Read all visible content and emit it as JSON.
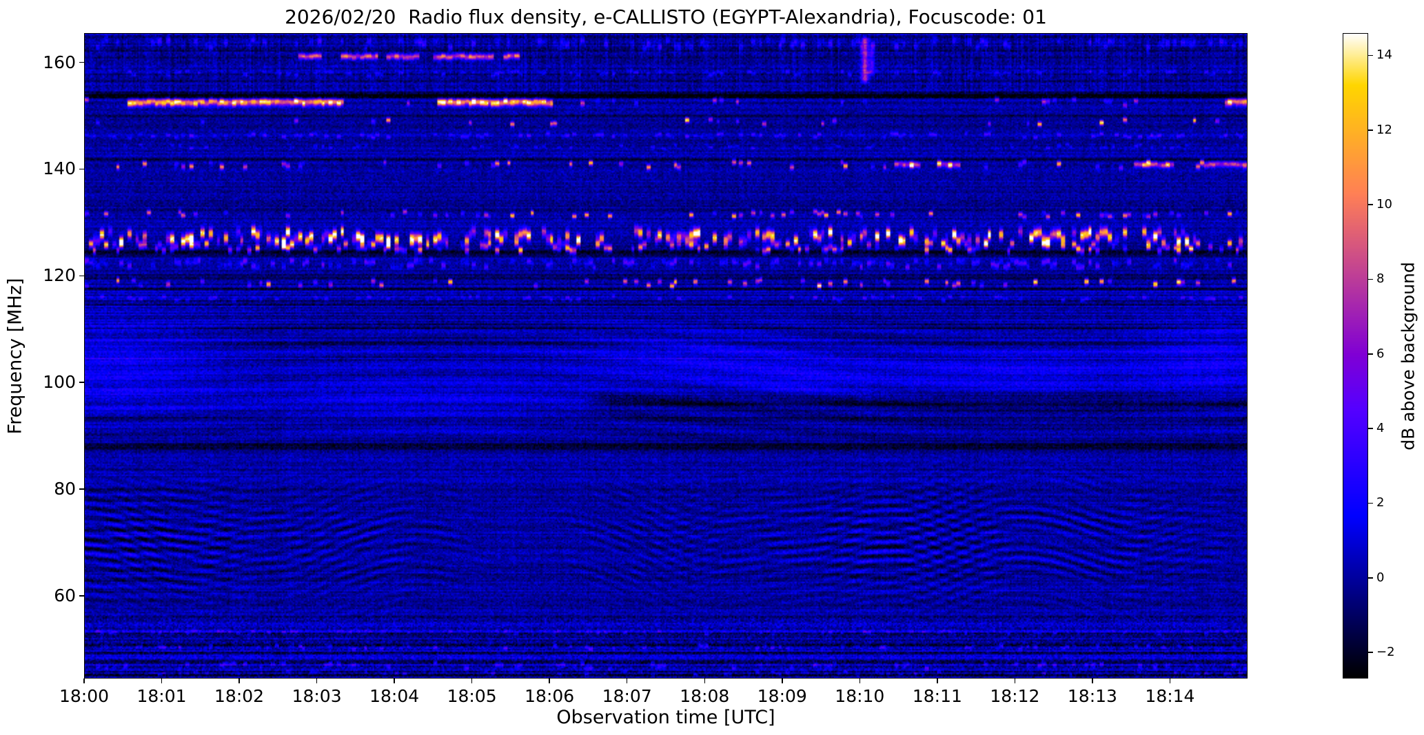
{
  "chart_data": {
    "type": "heatmap",
    "title": "2026/02/20  Radio flux density, e-CALLISTO (EGYPT-Alexandria), Focuscode: 01",
    "xlabel": "Observation time [UTC]",
    "ylabel": "Frequency [MHz]",
    "x_tick_labels": [
      "18:00",
      "18:01",
      "18:02",
      "18:03",
      "18:04",
      "18:05",
      "18:06",
      "18:07",
      "18:08",
      "18:09",
      "18:10",
      "18:11",
      "18:12",
      "18:13",
      "18:14"
    ],
    "x_tick_minutes": [
      0,
      1,
      2,
      3,
      4,
      5,
      6,
      7,
      8,
      9,
      10,
      11,
      12,
      13,
      14
    ],
    "x_range_minutes": [
      0,
      15
    ],
    "y_tick_values": [
      160,
      140,
      120,
      100,
      80,
      60
    ],
    "y_tick_labels": [
      "160",
      "140",
      "120",
      "100",
      "80",
      "60"
    ],
    "ylim": [
      44.5,
      165.5
    ],
    "colormap": "gnuplot2",
    "background_color": "#ffffff",
    "axis_color": "#000000",
    "colorbar": {
      "label": "dB above background",
      "tick_values": [
        14,
        12,
        10,
        8,
        6,
        4,
        2,
        0,
        -2
      ],
      "tick_labels": [
        "14",
        "12",
        "10",
        "8",
        "6",
        "4",
        "2",
        "0",
        "−2"
      ],
      "vmin": -2.7,
      "vmax": 14.6
    },
    "background_level_db": 0,
    "noise": {
      "pixel_sigma": 0.78,
      "row_sigma": 0.45,
      "col_sigma": 0.15,
      "row_sigma_mid": 0.85,
      "row_sigma_low": 1.05,
      "row_sigma_top": 0.65,
      "top_col_sigma": 0.75
    },
    "features": {
      "rfi_lines": [
        {
          "f": 161.2,
          "w": 0.9,
          "i": 9,
          "seg": [
            [
              2.75,
              3.05
            ],
            [
              3.3,
              3.78
            ],
            [
              3.9,
              4.32
            ],
            [
              4.5,
              5.28
            ],
            [
              5.4,
              5.62
            ]
          ]
        },
        {
          "f": 152.6,
          "w": 1.1,
          "i": 12,
          "seg": [
            [
              0.55,
              3.35
            ],
            [
              4.55,
              6.05
            ],
            [
              14.72,
              15
            ]
          ]
        },
        {
          "f": 152.6,
          "w": 0.9,
          "i": 5,
          "occ": 0.08,
          "jit": true
        },
        {
          "f": 148.9,
          "w": 0.8,
          "i": 8.5,
          "occ": 0.07,
          "jit": true
        },
        {
          "f": 146.4,
          "w": 0.6,
          "i": 2.4,
          "occ": 0.35,
          "jit": true
        },
        {
          "f": 140.9,
          "w": 0.9,
          "i": 7,
          "occ": 0.15,
          "jit": true
        },
        {
          "f": 140.9,
          "w": 0.9,
          "i": 7.5,
          "seg": [
            [
              10.45,
              10.78
            ],
            [
              11.0,
              11.3
            ],
            [
              13.55,
              14.05
            ],
            [
              14.4,
              15
            ]
          ]
        },
        {
          "f": 131.6,
          "w": 0.8,
          "i": 7,
          "occ": 0.22,
          "jit": true
        },
        {
          "f": 127.4,
          "w": 1.7,
          "i": 10.5,
          "occ": 0.5,
          "jit": true
        },
        {
          "f": 125.4,
          "w": 1.2,
          "i": 8,
          "occ": 0.38,
          "jit": true
        },
        {
          "f": 122.3,
          "w": 1.0,
          "i": 3,
          "occ": 0.5,
          "jit": true
        },
        {
          "f": 118.7,
          "w": 0.9,
          "i": 8,
          "occ": 0.17,
          "jit": true
        },
        {
          "f": 115.8,
          "w": 0.6,
          "i": 2,
          "occ": 0.3,
          "jit": true
        },
        {
          "f": 144.3,
          "w": 0.5,
          "i": 1.6,
          "occ": 0.25,
          "jit": true
        },
        {
          "f": 163.6,
          "w": 1.3,
          "i": 2,
          "occ": 0.4,
          "jit": true
        },
        {
          "f": 158.1,
          "w": 0.6,
          "i": 1.8,
          "occ": 0.3,
          "jit": true
        },
        {
          "f": 50.3,
          "w": 0.6,
          "i": 2.4,
          "occ": 0.28,
          "jit": true
        },
        {
          "f": 53.0,
          "w": 0.5,
          "i": 1.8,
          "occ": 0.3,
          "jit": true
        },
        {
          "f": 46.8,
          "w": 0.8,
          "i": 2.2,
          "occ": 0.3,
          "jit": true
        },
        {
          "f": 45.4,
          "w": 0.5,
          "i": 2.0,
          "occ": 0.25,
          "jit": true
        }
      ],
      "dark_bands": [
        {
          "f": 153.9,
          "w": 0.8,
          "d": 2.4
        },
        {
          "f": 150.1,
          "w": 0.4,
          "d": 1.4
        },
        {
          "f": 141.9,
          "w": 0.5,
          "d": 1.3
        },
        {
          "f": 132.5,
          "w": 0.4,
          "d": 1.0
        },
        {
          "f": 124.4,
          "w": 1.0,
          "d": 2.0
        },
        {
          "f": 119.6,
          "w": 0.6,
          "d": 1.8
        },
        {
          "f": 117.6,
          "w": 0.5,
          "d": 1.5
        },
        {
          "f": 114.6,
          "w": 0.4,
          "d": 1.0
        },
        {
          "f": 110.1,
          "w": 0.4,
          "d": 0.9
        },
        {
          "f": 96.4,
          "w": 3.0,
          "d": 1.7,
          "t0": 6.4,
          "t1": 15
        },
        {
          "f": 93.1,
          "w": 1.2,
          "d": 1.1
        },
        {
          "f": 87.9,
          "w": 1.4,
          "d": 2.3
        },
        {
          "f": 50.9,
          "w": 0.4,
          "d": 1.6
        },
        {
          "f": 47.8,
          "w": 0.35,
          "d": 1.3
        },
        {
          "f": 162.3,
          "w": 0.4,
          "d": 1.5
        },
        {
          "f": 156.6,
          "w": 0.4,
          "d": 1.2
        },
        {
          "f": 45.0,
          "w": 0.4,
          "d": 1.2
        }
      ],
      "fringes": {
        "f_low": 54.5,
        "f_high": 87.0,
        "center": 70,
        "sigma": 11,
        "period1": 1.9,
        "period2": 1.55,
        "amp": 1.9
      },
      "mid_ripples": {
        "f_low": 88,
        "f_high": 113,
        "period": 3.1,
        "amp": 0.5
      },
      "blue_patches": [
        {
          "t": 0.35,
          "f": 103.5,
          "dt": 1.3,
          "df": 10,
          "i": 1.7
        },
        {
          "t": 4.3,
          "f": 97.0,
          "dt": 2.2,
          "df": 7,
          "i": 1.1
        },
        {
          "t": 7.9,
          "f": 104.5,
          "dt": 1.6,
          "df": 6,
          "i": 1.5
        },
        {
          "t": 9.3,
          "f": 100.0,
          "dt": 1.0,
          "df": 4,
          "i": 1.2
        },
        {
          "t": 11.9,
          "f": 101.5,
          "dt": 1.8,
          "df": 5,
          "i": 1.6
        },
        {
          "t": 14.55,
          "f": 104.0,
          "dt": 0.9,
          "df": 9,
          "i": 1.6
        }
      ],
      "vertical_streaks": [
        {
          "t": 10.07,
          "f0": 156.0,
          "f1": 165.2,
          "w": 0.05,
          "i": 7.5
        },
        {
          "t": 10.16,
          "f0": 157.5,
          "f1": 164.0,
          "w": 0.035,
          "i": 4
        }
      ]
    }
  }
}
